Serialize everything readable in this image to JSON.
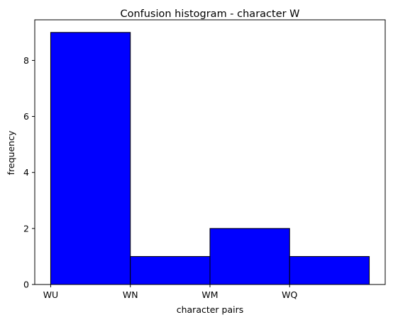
{
  "chart_data": {
    "type": "bar",
    "title": "Confusion histogram - character W",
    "xlabel": "character pairs",
    "ylabel": "frequency",
    "x_tick_labels": [
      "WU",
      "WN",
      "WM",
      "WQ"
    ],
    "bins": [
      {
        "left": 0,
        "right": 1,
        "value": 9
      },
      {
        "left": 1,
        "right": 2,
        "value": 1
      },
      {
        "left": 2,
        "right": 3,
        "value": 2
      },
      {
        "left": 3,
        "right": 4,
        "value": 1
      }
    ],
    "xlim": [
      -0.2,
      4.2
    ],
    "ylim": [
      0,
      9.45
    ],
    "y_ticks": [
      0,
      2,
      4,
      6,
      8
    ],
    "y_tick_labels": [
      "0",
      "2",
      "4",
      "6",
      "8"
    ],
    "grid": false,
    "bar_color": "#0000ff",
    "edge_color": "#000000"
  }
}
